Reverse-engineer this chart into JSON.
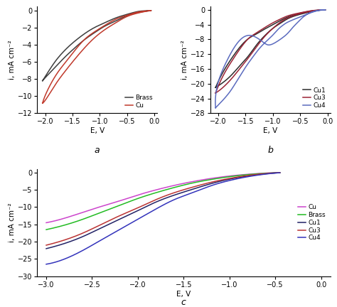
{
  "subplot_a": {
    "title": "a",
    "xlabel": "E, V",
    "ylabel": "i, mA cm⁻²",
    "xlim": [
      -2.15,
      0.05
    ],
    "ylim": [
      -12,
      0.5
    ],
    "xticks": [
      -2.0,
      -1.5,
      -1.0,
      -0.5,
      0.0
    ],
    "yticks": [
      0,
      -2,
      -4,
      -6,
      -8,
      -10,
      -12
    ],
    "series": [
      {
        "label": "Brass",
        "color": "#3d3d3d",
        "x": [
          -2.05,
          -1.95,
          -1.8,
          -1.65,
          -1.5,
          -1.3,
          -1.1,
          -0.9,
          -0.7,
          -0.5,
          -0.3,
          -0.15,
          -0.07,
          -0.07,
          -0.15,
          -0.3,
          -0.5,
          -0.7,
          -0.9,
          -1.1,
          -1.3,
          -1.5,
          -1.65,
          -1.8,
          -1.95,
          -2.05
        ],
        "y": [
          -8.2,
          -7.5,
          -6.5,
          -5.5,
          -4.6,
          -3.5,
          -2.6,
          -1.8,
          -1.2,
          -0.6,
          -0.25,
          -0.08,
          -0.02,
          -0.01,
          -0.04,
          -0.12,
          -0.45,
          -0.85,
          -1.4,
          -2.0,
          -2.8,
          -3.8,
          -4.7,
          -5.8,
          -7.2,
          -8.2
        ]
      },
      {
        "label": "Cu",
        "color": "#c0392b",
        "x": [
          -2.05,
          -1.95,
          -1.8,
          -1.65,
          -1.5,
          -1.3,
          -1.1,
          -0.9,
          -0.7,
          -0.5,
          -0.3,
          -0.15,
          -0.07,
          -0.07,
          -0.15,
          -0.3,
          -0.5,
          -0.7,
          -0.9,
          -1.1,
          -1.3,
          -1.5,
          -1.65,
          -1.8,
          -1.95,
          -2.05
        ],
        "y": [
          -10.8,
          -10.0,
          -8.5,
          -7.2,
          -6.0,
          -4.5,
          -3.2,
          -2.2,
          -1.4,
          -0.7,
          -0.3,
          -0.1,
          -0.03,
          -0.02,
          -0.06,
          -0.18,
          -0.55,
          -1.0,
          -1.7,
          -2.5,
          -3.5,
          -5.0,
          -6.2,
          -7.5,
          -9.2,
          -10.8
        ]
      }
    ]
  },
  "subplot_b": {
    "title": "b",
    "xlabel": "E, V",
    "ylabel": "i, mA cm⁻²",
    "xlim": [
      -2.15,
      0.05
    ],
    "ylim": [
      -28,
      1
    ],
    "xticks": [
      -2.0,
      -1.5,
      -1.0,
      -0.5,
      0.0
    ],
    "yticks": [
      0,
      -4,
      -8,
      -12,
      -16,
      -20,
      -24,
      -28
    ],
    "series": [
      {
        "label": "Cu1",
        "color": "#2c2c2c",
        "x": [
          -2.05,
          -1.9,
          -1.75,
          -1.6,
          -1.45,
          -1.3,
          -1.15,
          -1.0,
          -0.85,
          -0.7,
          -0.5,
          -0.3,
          -0.15,
          -0.05,
          -0.05,
          -0.15,
          -0.3,
          -0.5,
          -0.7,
          -0.85,
          -1.0,
          -1.15,
          -1.3,
          -1.45,
          -1.6,
          -1.75,
          -1.9,
          -2.05
        ],
        "y": [
          -21.0,
          -19.5,
          -17.5,
          -15.0,
          -12.5,
          -9.5,
          -7.0,
          -5.0,
          -3.5,
          -2.2,
          -1.2,
          -0.5,
          -0.1,
          -0.02,
          -0.01,
          -0.08,
          -0.3,
          -0.9,
          -1.8,
          -2.8,
          -4.0,
          -5.2,
          -6.5,
          -7.8,
          -10.0,
          -13.0,
          -16.5,
          -21.0
        ]
      },
      {
        "label": "Cu3",
        "color": "#9b2335",
        "x": [
          -2.05,
          -1.9,
          -1.75,
          -1.6,
          -1.45,
          -1.3,
          -1.15,
          -1.0,
          -0.85,
          -0.7,
          -0.5,
          -0.3,
          -0.15,
          -0.05,
          -0.05,
          -0.15,
          -0.3,
          -0.5,
          -0.7,
          -0.85,
          -1.0,
          -1.15,
          -1.3,
          -1.45,
          -1.6,
          -1.75,
          -1.9,
          -2.05
        ],
        "y": [
          -22.5,
          -20.8,
          -18.5,
          -15.8,
          -13.0,
          -10.0,
          -7.2,
          -5.0,
          -3.2,
          -2.0,
          -1.0,
          -0.4,
          -0.08,
          -0.01,
          -0.01,
          -0.06,
          -0.25,
          -0.8,
          -1.5,
          -2.4,
          -3.5,
          -4.8,
          -6.2,
          -7.8,
          -10.5,
          -13.8,
          -17.5,
          -22.5
        ]
      },
      {
        "label": "Cu4",
        "color": "#5b6bbf",
        "x": [
          -2.05,
          -1.92,
          -1.78,
          -1.65,
          -1.5,
          -1.38,
          -1.25,
          -1.12,
          -1.0,
          -0.9,
          -0.82,
          -0.75,
          -0.65,
          -0.55,
          -0.45,
          -0.35,
          -0.25,
          -0.15,
          -0.05,
          -0.05,
          -0.15,
          -0.25,
          -0.35,
          -0.45,
          -0.52,
          -0.62,
          -0.72,
          -0.82,
          -0.95,
          -1.08,
          -1.2,
          -1.38,
          -1.55,
          -1.7,
          -1.85,
          -2.0,
          -2.05
        ],
        "y": [
          -26.5,
          -24.5,
          -22.0,
          -19.0,
          -15.5,
          -13.0,
          -10.5,
          -8.5,
          -6.8,
          -5.2,
          -4.2,
          -3.5,
          -2.8,
          -2.2,
          -1.6,
          -1.0,
          -0.5,
          -0.15,
          -0.02,
          -0.01,
          -0.1,
          -0.4,
          -1.0,
          -2.0,
          -3.0,
          -4.5,
          -6.2,
          -7.5,
          -8.8,
          -9.5,
          -8.5,
          -7.0,
          -7.5,
          -10.0,
          -14.0,
          -19.5,
          -26.5
        ]
      }
    ]
  },
  "subplot_c": {
    "title": "c",
    "xlabel": "E, V",
    "ylabel": "i, mA cm⁻²",
    "xlim": [
      -3.1,
      0.1
    ],
    "ylim": [
      -30,
      1
    ],
    "xticks": [
      -3.0,
      -2.5,
      -2.0,
      -1.5,
      -1.0,
      -0.5,
      0.0
    ],
    "yticks": [
      0,
      -5,
      -10,
      -15,
      -20,
      -25,
      -30
    ],
    "series": [
      {
        "label": "Cu",
        "color": "#cc44cc",
        "x": [
          -3.0,
          -2.8,
          -2.6,
          -2.4,
          -2.2,
          -2.0,
          -1.8,
          -1.6,
          -1.4,
          -1.2,
          -1.0,
          -0.8,
          -0.6,
          -0.45
        ],
        "y": [
          -14.5,
          -13.2,
          -11.5,
          -9.8,
          -8.2,
          -6.5,
          -5.0,
          -3.7,
          -2.6,
          -1.7,
          -1.0,
          -0.5,
          -0.15,
          -0.02
        ]
      },
      {
        "label": "Brass",
        "color": "#22bb22",
        "x": [
          -3.0,
          -2.8,
          -2.6,
          -2.4,
          -2.2,
          -2.0,
          -1.8,
          -1.6,
          -1.4,
          -1.2,
          -1.0,
          -0.8,
          -0.6,
          -0.45
        ],
        "y": [
          -16.5,
          -15.2,
          -13.5,
          -11.5,
          -9.5,
          -7.5,
          -5.8,
          -4.3,
          -3.0,
          -2.0,
          -1.2,
          -0.6,
          -0.2,
          -0.03
        ]
      },
      {
        "label": "Cu1",
        "color": "#222266",
        "x": [
          -3.0,
          -2.8,
          -2.6,
          -2.4,
          -2.2,
          -2.0,
          -1.8,
          -1.6,
          -1.4,
          -1.2,
          -1.0,
          -0.8,
          -0.6,
          -0.45
        ],
        "y": [
          -22.0,
          -20.5,
          -18.5,
          -16.0,
          -13.5,
          -11.0,
          -8.5,
          -6.5,
          -4.8,
          -3.2,
          -1.9,
          -1.0,
          -0.35,
          -0.05
        ]
      },
      {
        "label": "Cu3",
        "color": "#bb3333",
        "x": [
          -3.0,
          -2.8,
          -2.6,
          -2.4,
          -2.2,
          -2.0,
          -1.8,
          -1.6,
          -1.4,
          -1.2,
          -1.0,
          -0.8,
          -0.6,
          -0.45
        ],
        "y": [
          -21.0,
          -19.5,
          -17.5,
          -15.0,
          -12.5,
          -10.2,
          -7.8,
          -5.8,
          -4.2,
          -2.8,
          -1.7,
          -0.85,
          -0.28,
          -0.04
        ]
      },
      {
        "label": "Cu4",
        "color": "#3333bb",
        "x": [
          -3.0,
          -2.8,
          -2.6,
          -2.4,
          -2.2,
          -2.0,
          -1.8,
          -1.6,
          -1.4,
          -1.2,
          -1.0,
          -0.8,
          -0.6,
          -0.45
        ],
        "y": [
          -26.5,
          -25.0,
          -22.5,
          -19.5,
          -16.5,
          -13.5,
          -10.5,
          -7.8,
          -5.8,
          -3.8,
          -2.3,
          -1.2,
          -0.42,
          -0.06
        ]
      }
    ]
  },
  "figure_bg": "#ffffff",
  "axes_bg": "#ffffff",
  "tick_fontsize": 7,
  "label_fontsize": 7.5,
  "legend_fontsize": 6.5,
  "line_width": 1.1
}
